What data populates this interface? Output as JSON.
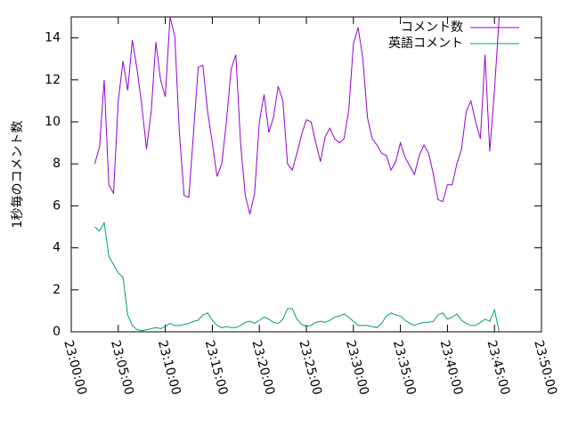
{
  "chart_data": {
    "type": "line",
    "ylabel": "1秒毎のコメント数",
    "x": [
      "23:02:30",
      "23:03:00",
      "23:03:30",
      "23:04:00",
      "23:04:30",
      "23:05:00",
      "23:05:30",
      "23:06:00",
      "23:06:30",
      "23:07:00",
      "23:07:30",
      "23:08:00",
      "23:08:30",
      "23:09:00",
      "23:09:30",
      "23:10:00",
      "23:10:30",
      "23:11:00",
      "23:11:30",
      "23:12:00",
      "23:12:30",
      "23:13:00",
      "23:13:30",
      "23:14:00",
      "23:14:30",
      "23:15:00",
      "23:15:30",
      "23:16:00",
      "23:16:30",
      "23:17:00",
      "23:17:30",
      "23:18:00",
      "23:18:30",
      "23:19:00",
      "23:19:30",
      "23:20:00",
      "23:20:30",
      "23:21:00",
      "23:21:30",
      "23:22:00",
      "23:22:30",
      "23:23:00",
      "23:23:30",
      "23:24:00",
      "23:24:30",
      "23:25:00",
      "23:25:30",
      "23:26:00",
      "23:26:30",
      "23:27:00",
      "23:27:30",
      "23:28:00",
      "23:28:30",
      "23:29:00",
      "23:29:30",
      "23:30:00",
      "23:30:30",
      "23:31:00",
      "23:31:30",
      "23:32:00",
      "23:32:30",
      "23:33:00",
      "23:33:30",
      "23:34:00",
      "23:34:30",
      "23:35:00",
      "23:35:30",
      "23:36:00",
      "23:36:30",
      "23:37:00",
      "23:37:30",
      "23:38:00",
      "23:38:30",
      "23:39:00",
      "23:39:30",
      "23:40:00",
      "23:40:30",
      "23:41:00",
      "23:41:30",
      "23:42:00",
      "23:42:30",
      "23:43:00",
      "23:43:30",
      "23:44:00",
      "23:44:30",
      "23:45:00",
      "23:45:30"
    ],
    "series": [
      {
        "name": "コメント数",
        "color": "#9400d3",
        "values": [
          8.0,
          8.8,
          12.0,
          7.0,
          6.6,
          11.0,
          12.9,
          11.5,
          13.9,
          12.5,
          10.8,
          8.7,
          10.5,
          13.8,
          12.0,
          11.2,
          15.0,
          14.1,
          9.5,
          6.5,
          6.4,
          9.5,
          12.6,
          12.7,
          10.5,
          9.0,
          7.4,
          8.0,
          10.0,
          12.5,
          13.2,
          9.0,
          6.5,
          5.6,
          6.6,
          10.0,
          11.3,
          9.5,
          10.2,
          11.7,
          11.0,
          8.0,
          7.7,
          8.5,
          9.4,
          10.1,
          10.0,
          9.0,
          8.1,
          9.3,
          9.7,
          9.2,
          9.0,
          9.2,
          10.5,
          13.7,
          14.5,
          13.0,
          10.2,
          9.2,
          8.9,
          8.5,
          8.4,
          7.7,
          8.1,
          9.0,
          8.3,
          7.9,
          7.5,
          8.4,
          8.9,
          8.5,
          7.5,
          6.3,
          6.2,
          7.0,
          7.0,
          8.0,
          8.7,
          10.5,
          11.0,
          10.0,
          9.2,
          13.2,
          8.6,
          11.5,
          15.0
        ]
      },
      {
        "name": "英語コメント",
        "color": "#009e73",
        "values": [
          5.0,
          4.8,
          5.2,
          3.6,
          3.2,
          2.8,
          2.6,
          0.8,
          0.3,
          0.1,
          0.05,
          0.1,
          0.15,
          0.2,
          0.15,
          0.25,
          0.4,
          0.3,
          0.3,
          0.35,
          0.4,
          0.5,
          0.55,
          0.8,
          0.9,
          0.55,
          0.3,
          0.2,
          0.25,
          0.2,
          0.2,
          0.3,
          0.45,
          0.5,
          0.4,
          0.55,
          0.7,
          0.6,
          0.45,
          0.4,
          0.6,
          1.1,
          1.1,
          0.6,
          0.35,
          0.25,
          0.3,
          0.45,
          0.5,
          0.45,
          0.55,
          0.7,
          0.75,
          0.85,
          0.7,
          0.5,
          0.3,
          0.3,
          0.3,
          0.25,
          0.2,
          0.4,
          0.75,
          0.9,
          0.8,
          0.75,
          0.55,
          0.4,
          0.3,
          0.4,
          0.45,
          0.45,
          0.5,
          0.8,
          0.9,
          0.6,
          0.7,
          0.85,
          0.55,
          0.4,
          0.3,
          0.3,
          0.45,
          0.6,
          0.5,
          1.05,
          0.0
        ]
      }
    ],
    "xlim": [
      "23:00:00",
      "23:50:00"
    ],
    "xticks": [
      "23:00:00",
      "23:05:00",
      "23:10:00",
      "23:15:00",
      "23:20:00",
      "23:25:00",
      "23:30:00",
      "23:35:00",
      "23:40:00",
      "23:45:00",
      "23:50:00"
    ],
    "ylim": [
      0,
      15
    ],
    "yticks": [
      0,
      2,
      4,
      6,
      8,
      10,
      12,
      14
    ],
    "legend": "top-right"
  }
}
